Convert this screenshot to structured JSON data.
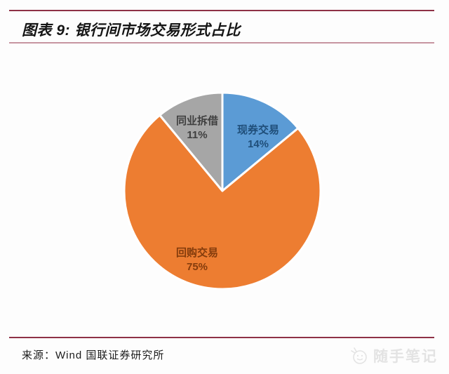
{
  "header": {
    "title": "图表 9: 银行间市场交易形式占比"
  },
  "chart_data": {
    "type": "pie",
    "title": "银行间市场交易形式占比",
    "start_angle_deg": 0,
    "direction": "clockwise",
    "legend": "none",
    "labels_position": "inside",
    "total_pct": 100,
    "slices": [
      {
        "label": "现券交易",
        "value": 14,
        "pct_label": "14%",
        "color": "#5B9BD5",
        "label_color": "#1F4E79"
      },
      {
        "label": "回购交易",
        "value": 75,
        "pct_label": "75%",
        "color": "#ED7D31",
        "label_color": "#843C0C"
      },
      {
        "label": "同业拆借",
        "value": 11,
        "pct_label": "11%",
        "color": "#A6A6A6",
        "label_color": "#3F3F3F"
      }
    ]
  },
  "footer": {
    "source": "来源：Wind 国联证券研究所",
    "watermark": "随手笔记"
  },
  "colors": {
    "rule_dark": "#8E3146",
    "rule_light": "#C795A1",
    "watermark_gray": "#E3E3E3",
    "slice_border": "#FFFFFF"
  }
}
